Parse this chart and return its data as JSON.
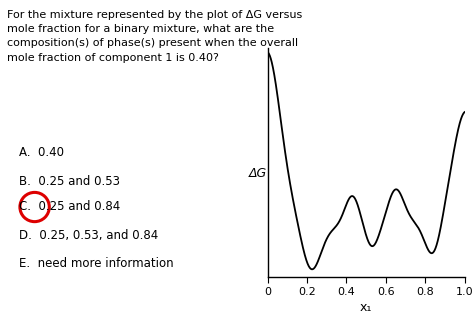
{
  "question_line1": "For the mixture represented by the plot of ΔG versus",
  "question_line2": "mole fraction for a binary mixture, what are the",
  "question_line3": "composition(s) of phase(s) present when the overall",
  "question_line4": "mole fraction of component 1 is 0.40?",
  "options": [
    "A.  0.40",
    "B.  0.25 and 0.53",
    "C.  0.25 and 0.84",
    "D.  0.25, 0.53, and 0.84",
    "E.  need more information"
  ],
  "correct_option_index": 2,
  "xlabel": "x₁",
  "ylabel": "ΔG",
  "xticks": [
    0,
    0.2,
    0.4,
    0.6,
    0.8,
    1.0
  ],
  "bg_color": "#ffffff",
  "curve_color": "#000000",
  "circle_color": "#dd0000"
}
